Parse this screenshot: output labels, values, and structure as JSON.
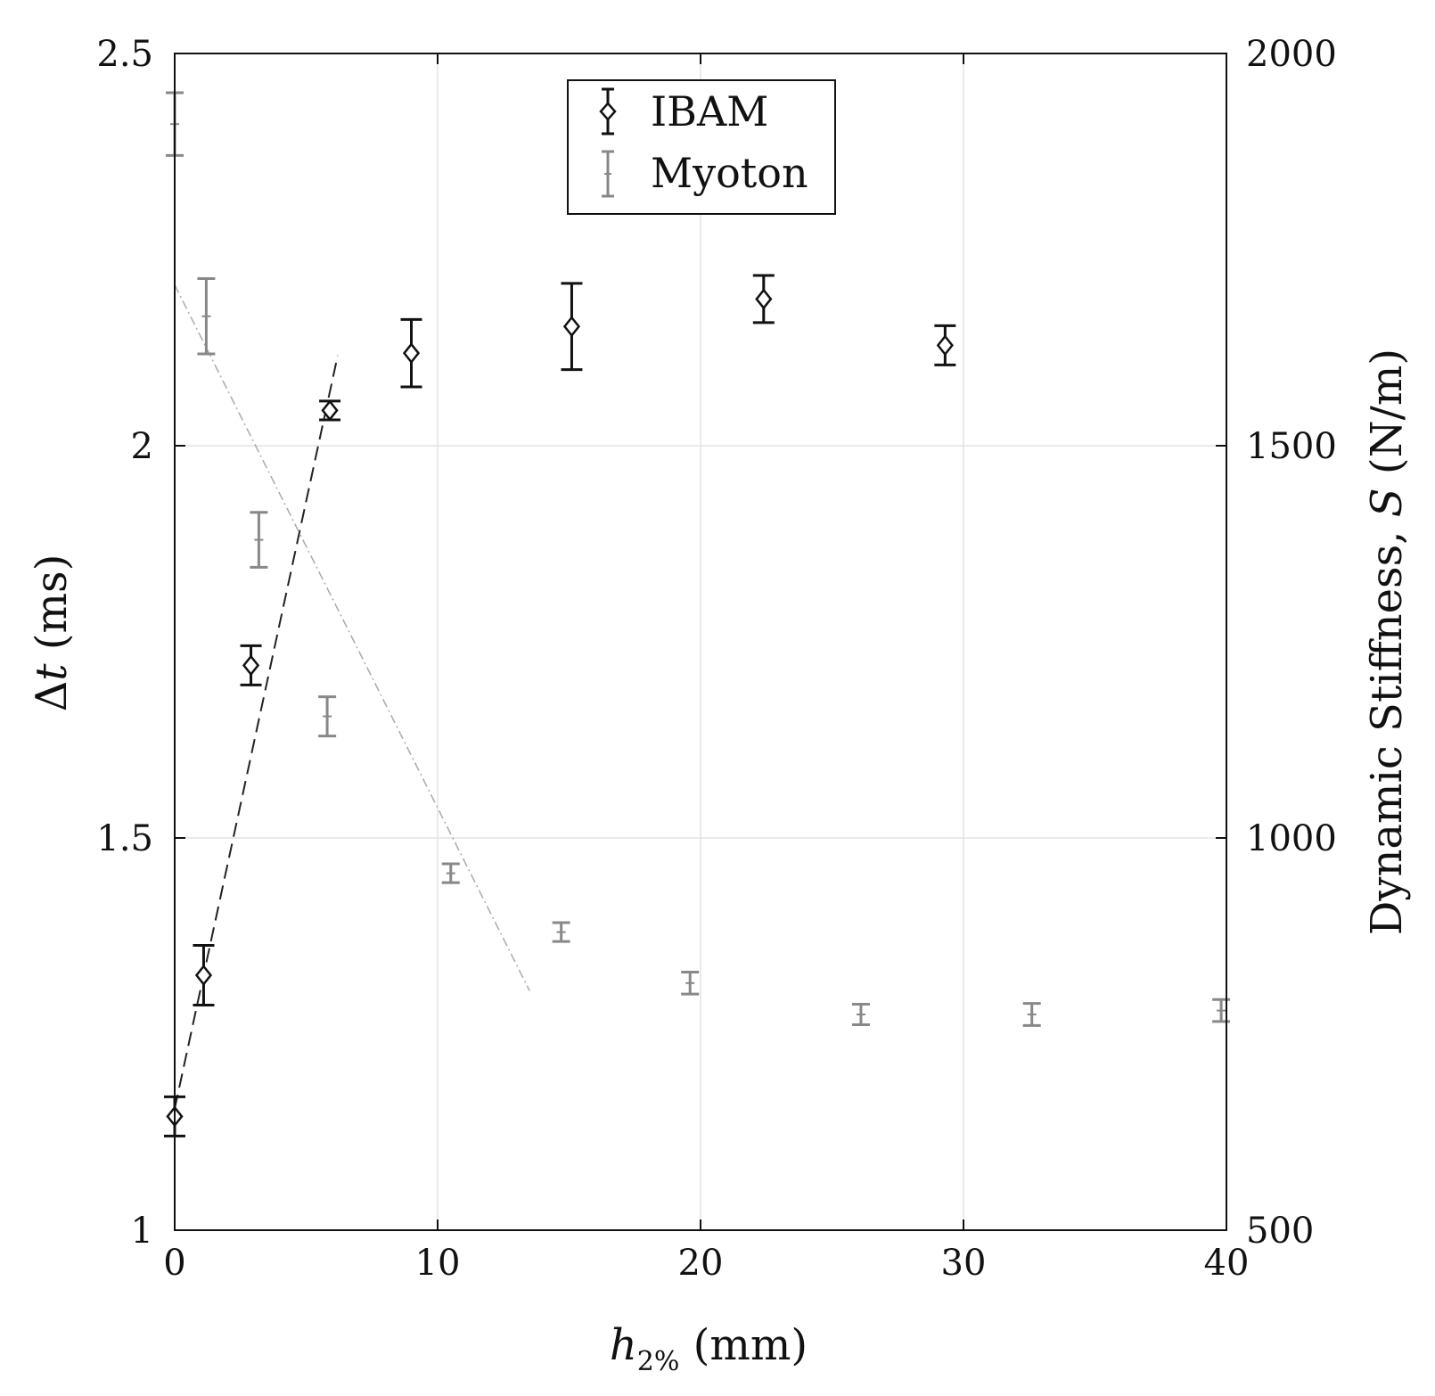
{
  "chart_data": {
    "type": "scatter",
    "xlabel": "h2% (mm)",
    "xlabel_parts": {
      "symbol": "h",
      "subscript": "2%",
      "unit": " (mm)"
    },
    "ylabel_left": "Δt (ms)",
    "ylabel_left_parts": {
      "delta": "Δ",
      "symbol": "t",
      "unit": " (ms)"
    },
    "ylabel_right": "Dynamic Stiffness, S (N/m)",
    "ylabel_right_parts": {
      "prefix": "Dynamic Stiffness, ",
      "symbol": "S",
      "unit": " (N/m)"
    },
    "xlim": [
      0,
      40
    ],
    "ylim_left": [
      1,
      2.5
    ],
    "ylim_right": [
      500,
      2000
    ],
    "x_ticks": [
      "0",
      "10",
      "20",
      "30",
      "40"
    ],
    "y_left_ticks": [
      "1",
      "1.5",
      "2",
      "2.5"
    ],
    "y_right_ticks": [
      "500",
      "1000",
      "1500",
      "2000"
    ],
    "grid": true,
    "legend_position": "top-center",
    "series": [
      {
        "name": "IBAM",
        "axis": "left",
        "color": "#111111",
        "marker": "diamond",
        "points": [
          {
            "x": 0,
            "y": 1.145,
            "err": 0.025
          },
          {
            "x": 1.1,
            "y": 1.325,
            "err": 0.038
          },
          {
            "x": 2.9,
            "y": 1.72,
            "err": 0.025
          },
          {
            "x": 5.9,
            "y": 2.045,
            "err": 0.012
          },
          {
            "x": 9.0,
            "y": 2.118,
            "err": 0.043
          },
          {
            "x": 15.1,
            "y": 2.152,
            "err": 0.055
          },
          {
            "x": 22.4,
            "y": 2.187,
            "err": 0.03
          },
          {
            "x": 29.3,
            "y": 2.128,
            "err": 0.025
          }
        ],
        "fit": {
          "x": [
            0,
            6.2
          ],
          "y": [
            1.155,
            2.115
          ]
        }
      },
      {
        "name": "Myoton",
        "axis": "right",
        "color": "#888888",
        "marker": "none",
        "points": [
          {
            "x": 0,
            "y": 1910,
            "err": 40
          },
          {
            "x": 1.2,
            "y": 1665,
            "err": 48
          },
          {
            "x": 3.2,
            "y": 1380,
            "err": 35
          },
          {
            "x": 5.8,
            "y": 1155,
            "err": 25
          },
          {
            "x": 10.5,
            "y": 955,
            "err": 12
          },
          {
            "x": 14.7,
            "y": 880,
            "err": 12
          },
          {
            "x": 19.6,
            "y": 815,
            "err": 14
          },
          {
            "x": 26.1,
            "y": 775,
            "err": 13
          },
          {
            "x": 32.6,
            "y": 775,
            "err": 14
          },
          {
            "x": 39.8,
            "y": 780,
            "err": 14
          }
        ],
        "fit": {
          "x": [
            0,
            13.5
          ],
          "y": [
            1705,
            805
          ]
        }
      }
    ]
  }
}
